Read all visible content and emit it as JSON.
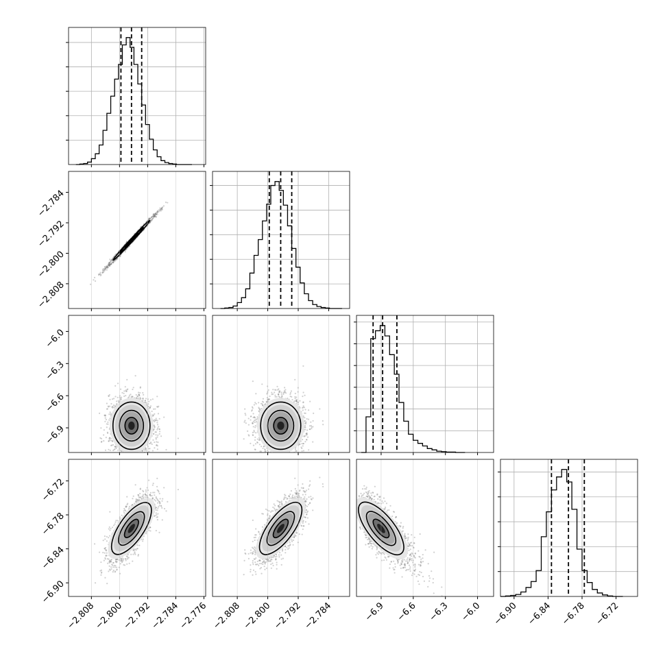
{
  "chart_data": {
    "type": "corner-plot",
    "parameters": [
      "",
      "",
      "",
      ""
    ],
    "axes": {
      "p0": {
        "range": [
          -2.8145,
          -2.7755
        ],
        "ticks": [
          -2.808,
          -2.8,
          -2.792,
          -2.784,
          -2.776
        ],
        "tick_labels": [
          "−2.808",
          "−2.800",
          "−2.792",
          "−2.784",
          "−2.776"
        ]
      },
      "p1": {
        "range": [
          -2.8145,
          -2.7785
        ],
        "ticks": [
          -2.808,
          -2.8,
          -2.792,
          -2.784
        ],
        "tick_labels": [
          "−2.808",
          "−2.800",
          "−2.792",
          "−2.784"
        ]
      },
      "p2": {
        "range": [
          -7.13,
          -5.85
        ],
        "ticks": [
          -6.9,
          -6.6,
          -6.3,
          -6.0
        ],
        "tick_labels": [
          "−6.9",
          "−6.6",
          "−6.3",
          "−6.0"
        ]
      },
      "p3": {
        "range": [
          -6.924,
          -6.682
        ],
        "ticks": [
          -6.9,
          -6.84,
          -6.78,
          -6.72
        ],
        "tick_labels": [
          "−6.90",
          "−6.84",
          "−6.78",
          "−6.72"
        ]
      }
    },
    "histograms": [
      {
        "param": "p0",
        "edges": [
          -2.8124,
          -2.8113,
          -2.8102,
          -2.8091,
          -2.808,
          -2.8069,
          -2.8058,
          -2.8047,
          -2.8036,
          -2.8025,
          -2.8014,
          -2.8003,
          -2.7992,
          -2.7981,
          -2.797,
          -2.7959,
          -2.7948,
          -2.7937,
          -2.7926,
          -2.7915,
          -2.7904,
          -2.7893,
          -2.7882,
          -2.7871,
          -2.786,
          -2.7849,
          -2.7838,
          -2.7827,
          -2.7816,
          -2.7805,
          -2.7794
        ],
        "counts": [
          0,
          1,
          2,
          5,
          12,
          22,
          40,
          70,
          105,
          140,
          175,
          205,
          245,
          260,
          240,
          205,
          165,
          122,
          82,
          52,
          30,
          16,
          8,
          4,
          2,
          1,
          0,
          0,
          0,
          0
        ],
        "quantiles": [
          -2.7996,
          -2.7966,
          -2.7937
        ]
      },
      {
        "param": "p1",
        "edges": [
          -2.8124,
          -2.8113,
          -2.8102,
          -2.8091,
          -2.808,
          -2.8069,
          -2.8058,
          -2.8047,
          -2.8036,
          -2.8025,
          -2.8014,
          -2.8003,
          -2.7992,
          -2.7981,
          -2.797,
          -2.7959,
          -2.7948,
          -2.7937,
          -2.7926,
          -2.7915,
          -2.7904,
          -2.7893,
          -2.7882,
          -2.7871,
          -2.786,
          -2.7849,
          -2.7838,
          -2.7827,
          -2.7816,
          -2.7805
        ],
        "counts": [
          0,
          1,
          2,
          5,
          12,
          22,
          40,
          72,
          108,
          140,
          178,
          212,
          250,
          258,
          240,
          210,
          168,
          122,
          84,
          52,
          30,
          16,
          8,
          4,
          2,
          1,
          0,
          0,
          0
        ],
        "quantiles": [
          -2.7996,
          -2.7966,
          -2.7937
        ]
      },
      {
        "param": "p2",
        "edges": [
          -7.085,
          -7.041,
          -6.997,
          -6.953,
          -6.909,
          -6.865,
          -6.821,
          -6.777,
          -6.733,
          -6.689,
          -6.645,
          -6.601,
          -6.557,
          -6.513,
          -6.469,
          -6.425,
          -6.381,
          -6.337,
          -6.293,
          -6.249,
          -6.205,
          -6.161,
          -6.117
        ],
        "counts": [
          0,
          82,
          262,
          280,
          292,
          268,
          225,
          180,
          115,
          72,
          42,
          28,
          21,
          15,
          9,
          6,
          3,
          2,
          1,
          1,
          0,
          0
        ],
        "quantiles": [
          -6.975,
          -6.886,
          -6.753
        ]
      },
      {
        "param": "p3",
        "edges": [
          -6.924,
          -6.915,
          -6.906,
          -6.897,
          -6.888,
          -6.879,
          -6.87,
          -6.861,
          -6.852,
          -6.843,
          -6.834,
          -6.825,
          -6.816,
          -6.807,
          -6.798,
          -6.789,
          -6.78,
          -6.771,
          -6.762,
          -6.753,
          -6.744,
          -6.735,
          -6.726,
          -6.717,
          -6.708
        ],
        "counts": [
          0,
          1,
          2,
          4,
          9,
          18,
          30,
          52,
          120,
          170,
          214,
          240,
          255,
          230,
          175,
          95,
          52,
          28,
          14,
          7,
          3,
          1,
          0,
          0
        ],
        "quantiles": [
          -6.834,
          -6.804,
          -6.776
        ]
      }
    ],
    "pairs": [
      {
        "x": "p0",
        "y": "p1",
        "cx": -2.7966,
        "cy": -2.7966,
        "sx": 0.0031,
        "sy": 0.0031,
        "rho": 0.995
      },
      {
        "x": "p0",
        "y": "p2",
        "cx": -2.7966,
        "cy": -6.88,
        "sx": 0.0031,
        "sy": 0.13,
        "rho": 0.0
      },
      {
        "x": "p1",
        "y": "p2",
        "cx": -2.7966,
        "cy": -6.88,
        "sx": 0.0031,
        "sy": 0.13,
        "rho": 0.0
      },
      {
        "x": "p0",
        "y": "p3",
        "cx": -2.7966,
        "cy": -6.804,
        "sx": 0.0031,
        "sy": 0.028,
        "rho": 0.72
      },
      {
        "x": "p1",
        "y": "p3",
        "cx": -2.7966,
        "cy": -6.804,
        "sx": 0.0031,
        "sy": 0.028,
        "rho": 0.72
      },
      {
        "x": "p2",
        "y": "p3",
        "cx": -6.9,
        "cy": -6.804,
        "sx": 0.12,
        "sy": 0.028,
        "rho": -0.72
      }
    ]
  }
}
